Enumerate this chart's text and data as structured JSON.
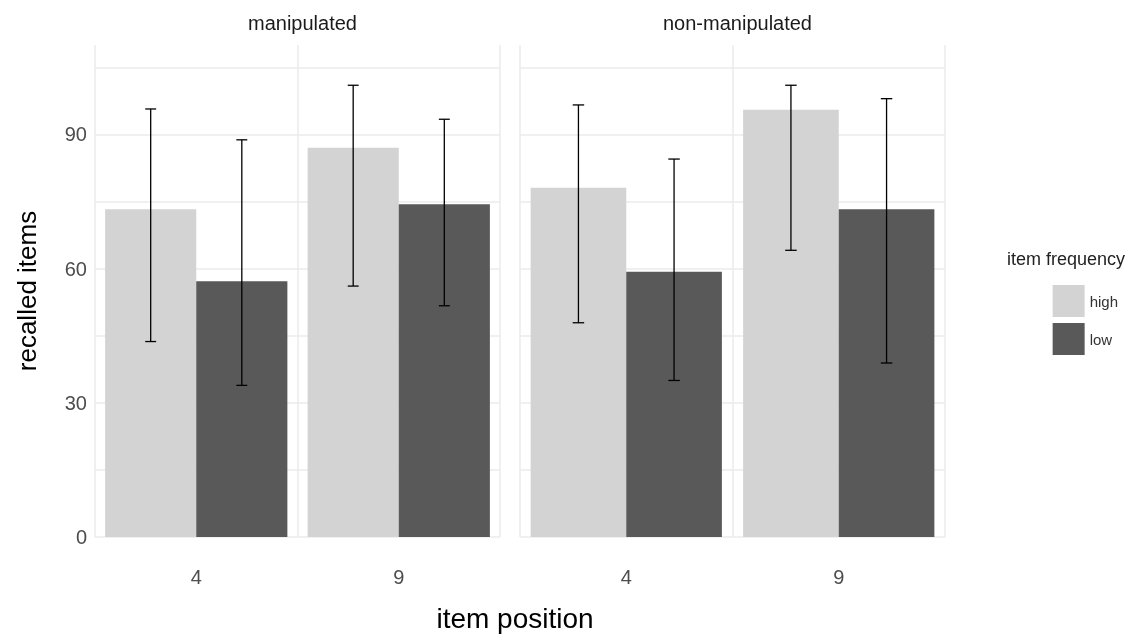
{
  "chart_data": [
    {
      "type": "bar",
      "title": "manipulated",
      "xlabel": "item position",
      "ylabel": "recalled items",
      "categories": [
        "4",
        "9"
      ],
      "ylim": [
        0,
        110
      ],
      "yticks": [
        0,
        {
          "value": 15,
          "label": null
        },
        30,
        {
          "value": 45,
          "label": null
        },
        60,
        {
          "value": 75,
          "label": null
        },
        90,
        {
          "value": 105,
          "label": null
        }
      ],
      "grid": true,
      "series": [
        {
          "color": "#d3d3d3",
          "values": [
            73.3,
            87.0
          ],
          "errors": [
            [
              43.7,
              95.7
            ],
            [
              56.1,
              101
            ]
          ]
        },
        {
          "color": "#595959",
          "values": [
            57.2,
            74.4
          ],
          "errors": [
            [
              33.9,
              88.8
            ],
            [
              51.7,
              93.4
            ]
          ]
        }
      ]
    },
    {
      "type": "bar",
      "title": "non-manipulated",
      "categories": [
        "4",
        "9"
      ],
      "ylim": [
        0,
        110
      ],
      "yticks": [
        0,
        {
          "value": 15,
          "label": null
        },
        30,
        {
          "value": 45,
          "label": null
        },
        60,
        {
          "value": 75,
          "label": null
        },
        90,
        {
          "value": 105,
          "label": null
        }
      ],
      "grid": true,
      "tick_labels": "x",
      "legend": "right",
      "legend_title": "item frequency",
      "series": [
        {
          "name": "high",
          "color": "#d3d3d3",
          "values": [
            78.1,
            95.5
          ],
          "errors": [
            [
              47.9,
              96.6
            ],
            [
              64.1,
              101
            ]
          ]
        },
        {
          "name": "low",
          "color": "#595959",
          "values": [
            59.3,
            73.3
          ],
          "errors": [
            [
              35.0,
              84.5
            ],
            [
              38.9,
              98
            ]
          ]
        }
      ]
    }
  ]
}
